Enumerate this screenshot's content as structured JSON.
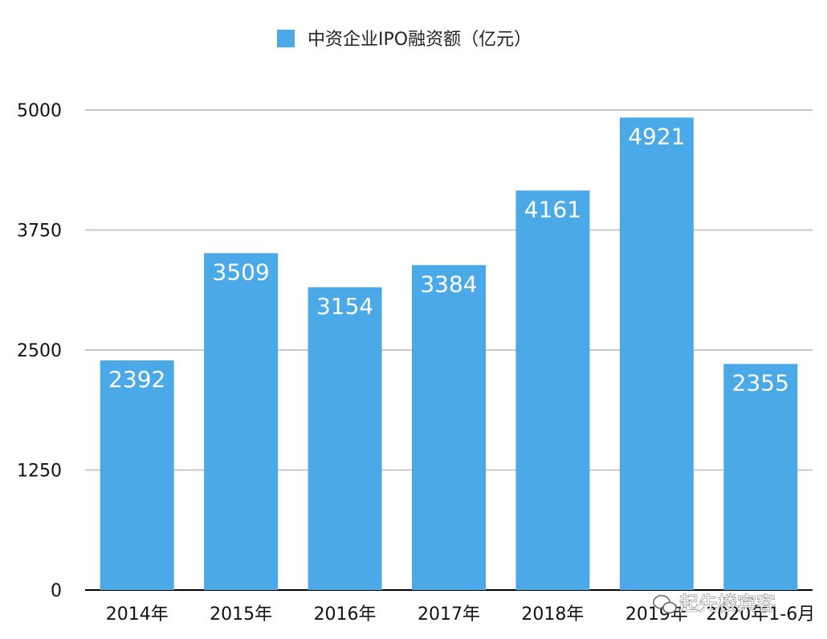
{
  "chart_data": {
    "type": "bar",
    "title": "",
    "xlabel": "",
    "ylabel": "",
    "categories": [
      "2014年",
      "2015年",
      "2016年",
      "2017年",
      "2018年",
      "2019年",
      "2020年1-6月"
    ],
    "series": [
      {
        "name": "中资企业IPO融资额（亿元）",
        "values": [
          2392,
          3509,
          3154,
          3384,
          4161,
          4921,
          2355
        ]
      }
    ],
    "ylim": [
      0,
      5000
    ],
    "yticks": [
      0,
      1250,
      2500,
      3750,
      5000
    ],
    "grid": true,
    "legend_position": "top-center",
    "data_labels": "inside-top",
    "colors": {
      "bar": "#4aa9e6",
      "grid": "#c8c8c8",
      "axis": "#000000"
    }
  },
  "watermark": {
    "text": "起先楼宾客",
    "icon": "wechat-icon"
  }
}
